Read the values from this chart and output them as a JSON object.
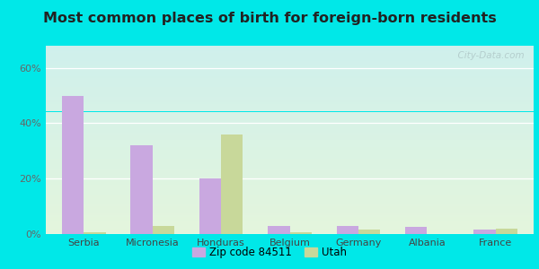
{
  "title": "Most common places of birth for foreign-born residents",
  "categories": [
    "Serbia",
    "Micronesia",
    "Honduras",
    "Belgium",
    "Germany",
    "Albania",
    "France"
  ],
  "zip_values": [
    50,
    32,
    20,
    3,
    3,
    2.5,
    1.5
  ],
  "utah_values": [
    0.5,
    3,
    36,
    0.5,
    1.5,
    0,
    2
  ],
  "zip_color": "#c9a8e0",
  "utah_color": "#c8d89a",
  "outer_bg": "#00e8e8",
  "grad_top": "#cff0ec",
  "grad_bottom": "#e4f5dc",
  "yticks": [
    0,
    20,
    40,
    60
  ],
  "ylim": [
    0,
    68
  ],
  "legend_labels": [
    "Zip code 84511",
    "Utah"
  ],
  "watermark": "  City-Data.com",
  "title_fontsize": 11.5,
  "tick_fontsize": 8,
  "legend_fontsize": 8.5
}
